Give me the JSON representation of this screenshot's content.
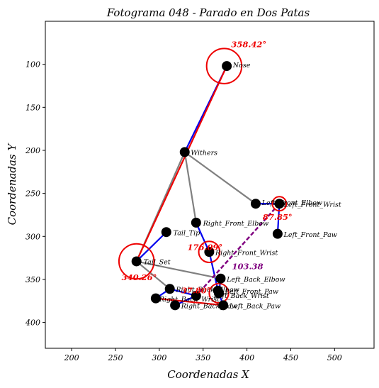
{
  "chart_data": {
    "type": "scatter",
    "title": "Fotograma 048 - Parado en Dos Patas",
    "xlabel": "Coordenadas X",
    "ylabel": "Coordenadas Y",
    "xlim": [
      170,
      545
    ],
    "ylim": [
      430,
      50
    ],
    "y_inverted": true,
    "grid": false,
    "legend": "none",
    "xticks": [
      200,
      250,
      300,
      350,
      400,
      450,
      500
    ],
    "yticks": [
      100,
      150,
      200,
      250,
      300,
      350,
      400
    ],
    "points": [
      {
        "name": "Nose",
        "x": 377,
        "y": 102
      },
      {
        "name": "Withers",
        "x": 329,
        "y": 202
      },
      {
        "name": "Left_Front_Elbow",
        "x": 410,
        "y": 262
      },
      {
        "name": "Left_Front_Wrist",
        "x": 437,
        "y": 262
      },
      {
        "name": "Left_Front_Paw",
        "x": 435,
        "y": 297
      },
      {
        "name": "Right_Front_Elbow",
        "x": 342,
        "y": 284
      },
      {
        "name": "Right_Front_Wrist",
        "x": 357,
        "y": 318
      },
      {
        "name": "Right_Front_Paw",
        "x": 367,
        "y": 363
      },
      {
        "name": "Tail_Tip",
        "x": 308,
        "y": 295
      },
      {
        "name": "Tail_Set",
        "x": 274,
        "y": 329
      },
      {
        "name": "Left_Back_Elbow",
        "x": 370,
        "y": 349
      },
      {
        "name": "Left_Back_Wrist",
        "x": 368,
        "y": 366
      },
      {
        "name": "Left_Back_Paw",
        "x": 373,
        "y": 380
      },
      {
        "name": "Right_Back_Elbow",
        "x": 312,
        "y": 361
      },
      {
        "name": "Right_Back_Wrist",
        "x": 342,
        "y": 369
      },
      {
        "name": "Right_Back_Paw",
        "x": 318,
        "y": 380
      },
      {
        "name": "Right_Back_Paw_2",
        "x": 296,
        "y": 372
      }
    ],
    "segments": [
      {
        "from": "Nose",
        "to": "Withers",
        "color": "#0000ee"
      },
      {
        "from": "Withers",
        "to": "Left_Front_Elbow",
        "color": "#808080"
      },
      {
        "from": "Left_Front_Elbow",
        "to": "Left_Front_Wrist",
        "color": "#0000ee"
      },
      {
        "from": "Left_Front_Wrist",
        "to": "Left_Front_Paw",
        "color": "#0000ee"
      },
      {
        "from": "Withers",
        "to": "Right_Front_Elbow",
        "color": "#808080"
      },
      {
        "from": "Right_Front_Elbow",
        "to": "Right_Front_Wrist",
        "color": "#0000ee"
      },
      {
        "from": "Right_Front_Wrist",
        "to": "Right_Front_Paw",
        "color": "#0000ee"
      },
      {
        "from": "Withers",
        "to": "Tail_Set",
        "color": "#808080"
      },
      {
        "from": "Tail_Set",
        "to": "Tail_Tip",
        "color": "#0000ee"
      },
      {
        "from": "Tail_Set",
        "to": "Left_Back_Elbow",
        "color": "#808080"
      },
      {
        "from": "Tail_Set",
        "to": "Right_Back_Elbow",
        "color": "#808080"
      },
      {
        "from": "Left_Back_Elbow",
        "to": "Left_Back_Wrist",
        "color": "#0000ee"
      },
      {
        "from": "Left_Back_Wrist",
        "to": "Left_Back_Paw",
        "color": "#0000ee"
      },
      {
        "from": "Right_Back_Elbow",
        "to": "Right_Back_Wrist",
        "color": "#0000ee"
      },
      {
        "from": "Right_Back_Wrist",
        "to": "Right_Back_Paw",
        "color": "#0000ee"
      },
      {
        "from": "Right_Back_Elbow",
        "to": "Right_Back_Paw_2",
        "color": "#0000ee"
      },
      {
        "from": "Nose",
        "to": "Tail_Set",
        "color": "#ee0000"
      },
      {
        "from": "Left_Back_Paw",
        "to": "Right_Back_Paw_2",
        "color": "#ee0000"
      }
    ],
    "dashed_segments": [
      {
        "from": "Left_Front_Wrist",
        "to": "Right_Back_Wrist",
        "color": "#800080"
      }
    ],
    "angle_circles": [
      {
        "cx": 374,
        "cy": 102,
        "r": 20
      },
      {
        "cx": 274,
        "cy": 329,
        "r": 20
      },
      {
        "cx": 437,
        "cy": 262,
        "r": 8
      },
      {
        "cx": 357,
        "cy": 318,
        "r": 12
      },
      {
        "cx": 368,
        "cy": 366,
        "r": 11
      }
    ],
    "angle_labels": [
      {
        "text": "358.42°",
        "x": 382,
        "y": 80,
        "color": "#ee0000"
      },
      {
        "text": "340.26°",
        "x": 257,
        "y": 351,
        "color": "#ee0000"
      },
      {
        "text": "87.85°",
        "x": 418,
        "y": 281,
        "color": "#ee0000"
      },
      {
        "text": "176.09°",
        "x": 332,
        "y": 316,
        "color": "#ee0000"
      },
      {
        "text": "37.80°",
        "x": 325,
        "y": 366,
        "color": "#ee0000"
      },
      {
        "text": "103.38",
        "x": 383,
        "y": 338,
        "color": "#800080"
      }
    ],
    "point_labels": [
      {
        "text": "Nose",
        "x": 384,
        "y": 101
      },
      {
        "text": "Withers",
        "x": 336,
        "y": 203
      },
      {
        "text": "Left_Front_Elbow",
        "x": 417,
        "y": 261
      },
      {
        "text": "Left_Front_Wrist",
        "x": 442,
        "y": 263
      },
      {
        "text": "Left_Front_Paw",
        "x": 442,
        "y": 298
      },
      {
        "text": "Right_Front_Elbow",
        "x": 350,
        "y": 285
      },
      {
        "text": "Right_Front_Wrist",
        "x": 364,
        "y": 319
      },
      {
        "text": "Tail_Tip",
        "x": 316,
        "y": 296
      },
      {
        "text": "Tail_Set",
        "x": 282,
        "y": 330
      },
      {
        "text": "Left_Back_Elbow",
        "x": 377,
        "y": 350
      },
      {
        "text": "Right_Back_Elbow",
        "x": 319,
        "y": 362
      },
      {
        "text": "Left_Front_Paw",
        "x": 375,
        "y": 364
      },
      {
        "text": "Left_Back_Wrist",
        "x": 362,
        "y": 369
      },
      {
        "text": "Right_Back_Wrist",
        "x": 300,
        "y": 373
      },
      {
        "text": "Right_Back_Paw",
        "x": 325,
        "y": 381
      },
      {
        "text": "Left_Back_Paw",
        "x": 380,
        "y": 381
      }
    ]
  }
}
